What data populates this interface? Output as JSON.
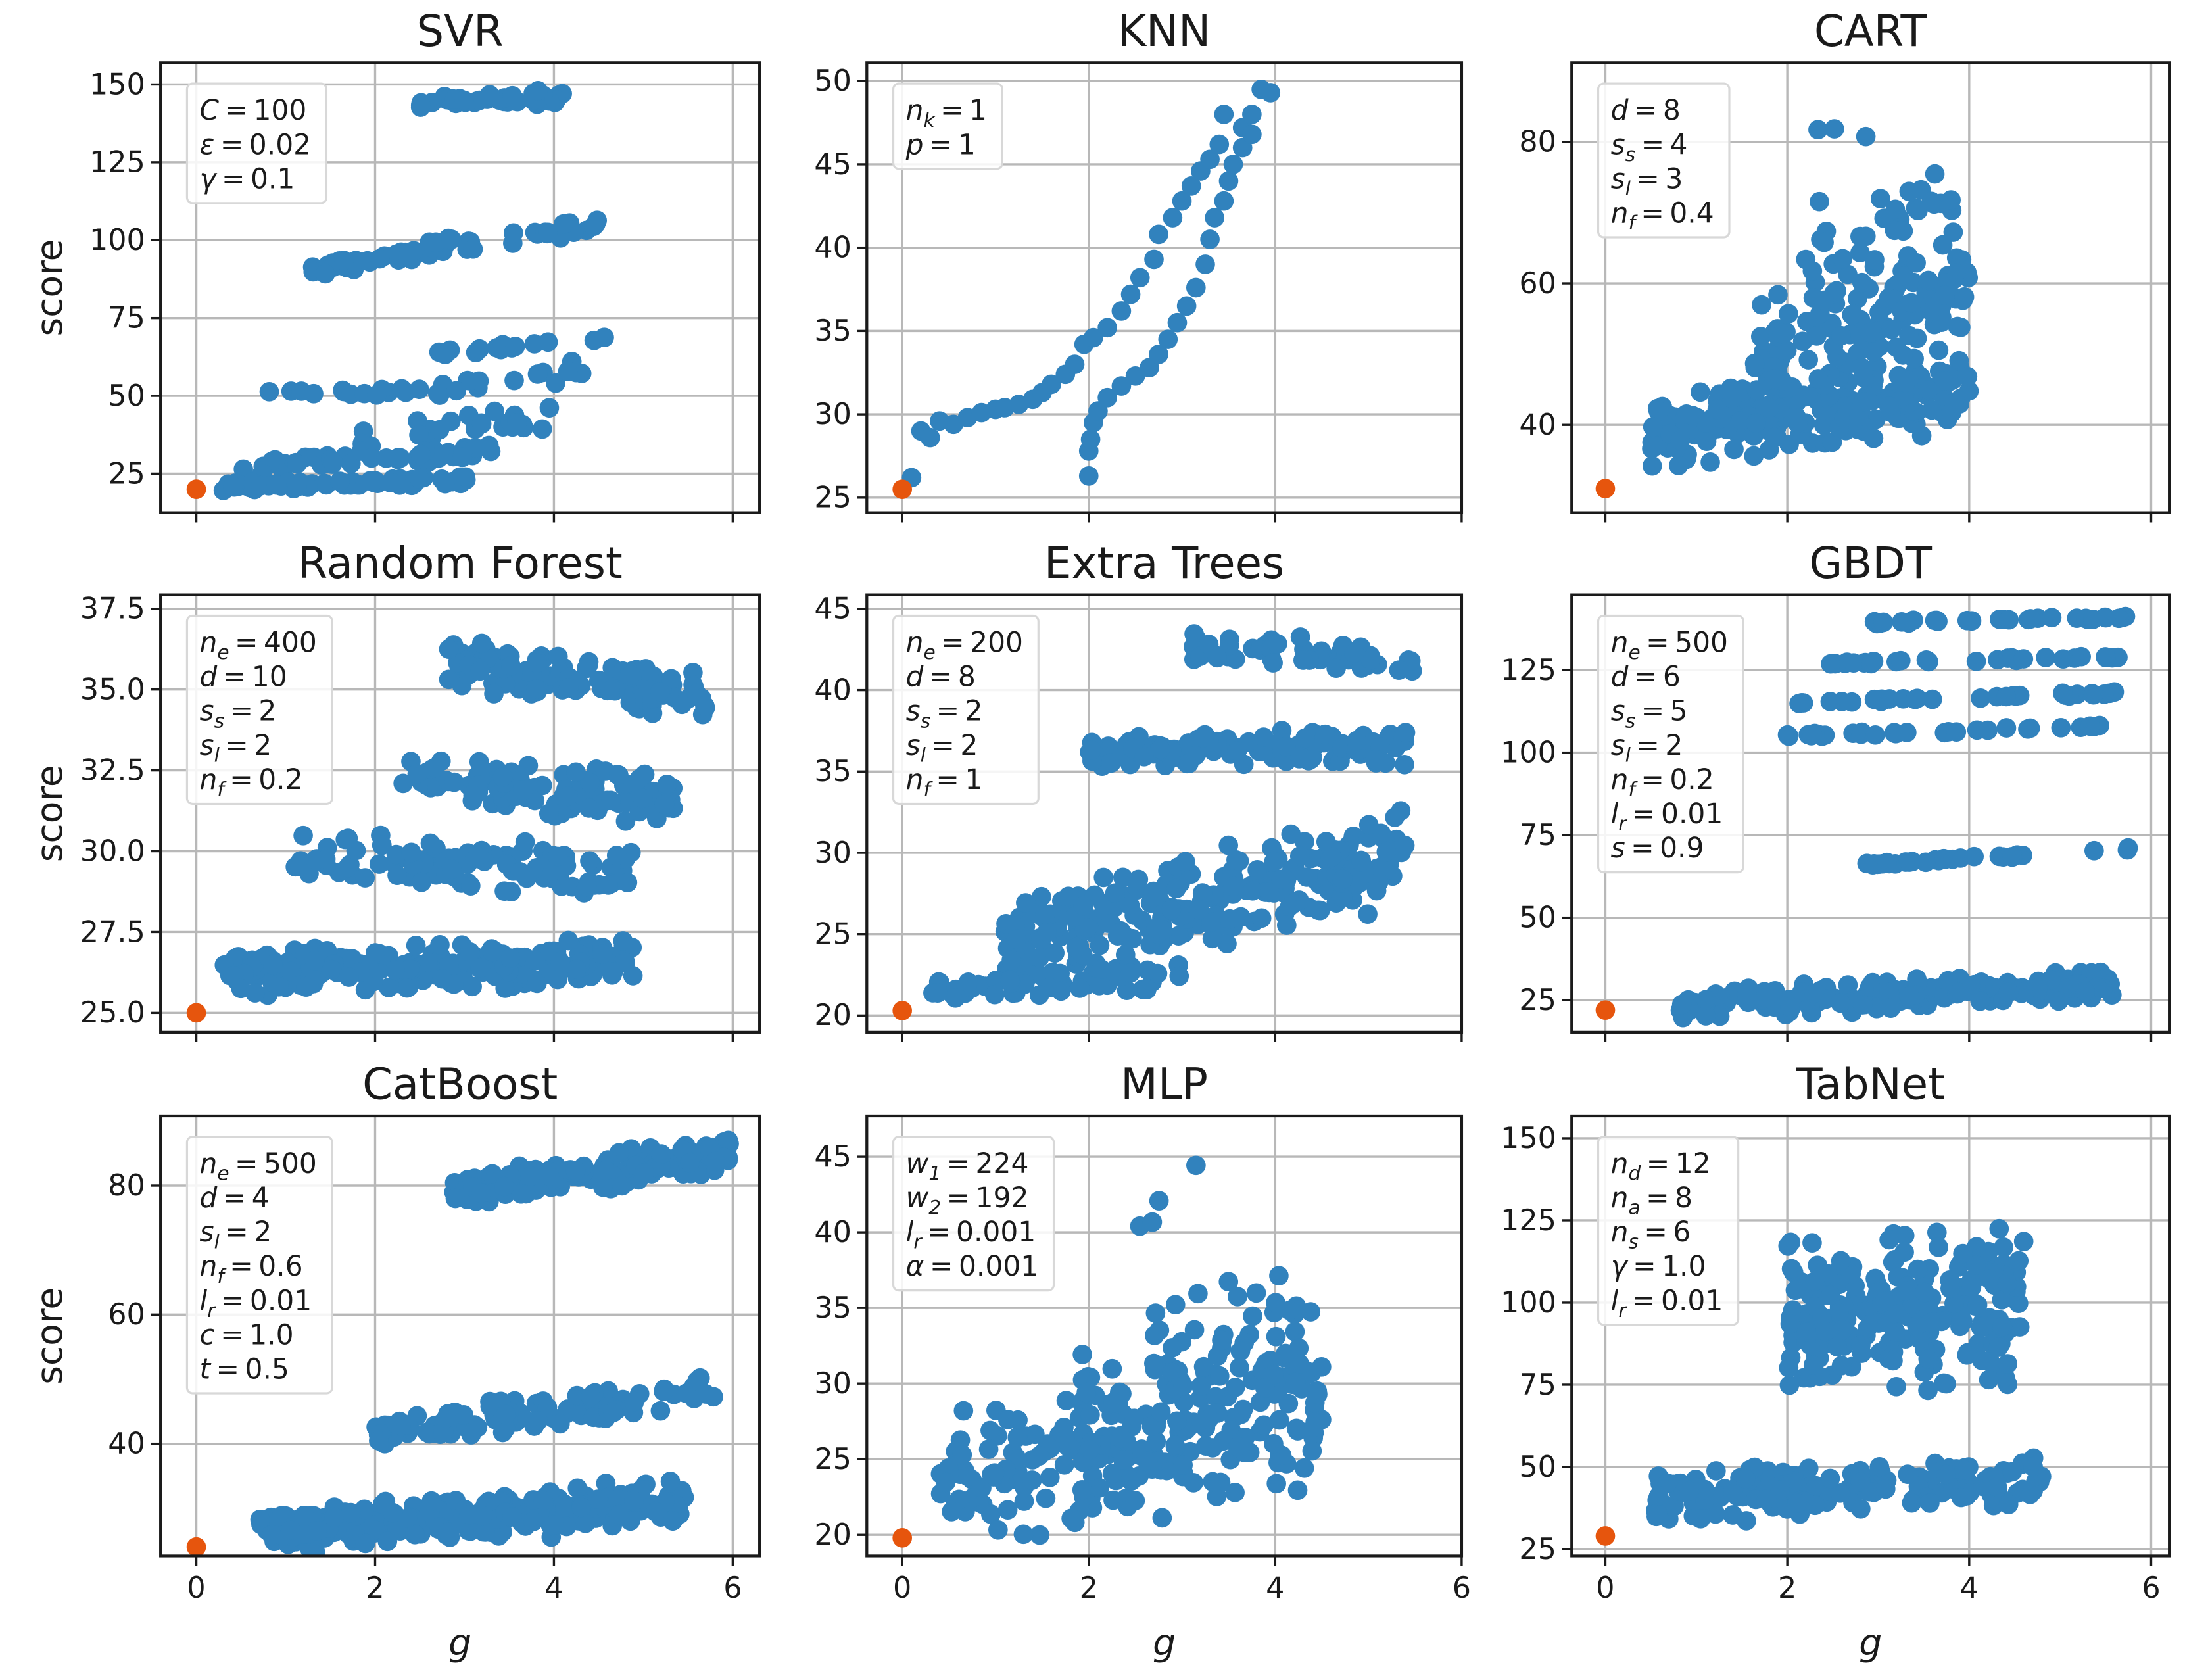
{
  "chart_data": {
    "type": "scatter",
    "layout": "3x3 grid",
    "xlabel": "g",
    "ylabel": "score",
    "colors": {
      "points": "#3182bd",
      "baseline": "#e6550d"
    },
    "panels": [
      {
        "title": "SVR",
        "xlim": [
          -0.4,
          6.3
        ],
        "ylim": [
          12.5,
          157
        ],
        "yticks": [
          25,
          50,
          75,
          100,
          125,
          150
        ],
        "xticks": [
          0,
          2,
          4,
          6
        ],
        "legend": [
          {
            "sym": "C",
            "sub": "",
            "val": "100"
          },
          {
            "sym": "ε",
            "sub": "",
            "val": "0.02"
          },
          {
            "sym": "γ",
            "sub": "",
            "val": "0.1"
          }
        ],
        "baseline": [
          0,
          20
        ],
        "clusters": [
          {
            "x": [
              2.5,
              4.1
            ],
            "y": [
              144,
              146
            ],
            "spread": 3,
            "n": 45
          },
          {
            "x": [
              1.1,
              2.8
            ],
            "y": [
              89,
              98
            ],
            "spread": 2.5,
            "n": 40
          },
          {
            "x": [
              2.6,
              4.5
            ],
            "y": [
              99,
              104
            ],
            "spread": 4,
            "n": 25
          },
          {
            "x": [
              2.6,
              4.6
            ],
            "y": [
              64,
              68
            ],
            "spread": 1.5,
            "n": 15
          },
          {
            "x": [
              0.8,
              2.0
            ],
            "y": [
              52,
              51
            ],
            "spread": 1,
            "n": 8
          },
          {
            "x": [
              2.0,
              4.4
            ],
            "y": [
              50,
              58
            ],
            "spread": 4,
            "n": 22
          },
          {
            "x": [
              1.8,
              4.0
            ],
            "y": [
              36,
              44
            ],
            "spread": 5,
            "n": 25
          },
          {
            "x": [
              0.5,
              3.3
            ],
            "y": [
              27,
              32
            ],
            "spread": 3,
            "n": 50
          },
          {
            "x": [
              0.3,
              3.2
            ],
            "y": [
              21,
              23
            ],
            "spread": 1.5,
            "n": 60
          }
        ]
      },
      {
        "title": "KNN",
        "xlim": [
          -0.38,
          6.0
        ],
        "ylim": [
          24.1,
          51.1
        ],
        "yticks": [
          25,
          30,
          35,
          40,
          45,
          50
        ],
        "xticks": [
          0,
          2,
          4,
          6
        ],
        "legend": [
          {
            "sym": "n",
            "sub": "k",
            "val": "1"
          },
          {
            "sym": "p",
            "sub": "",
            "val": "1"
          }
        ],
        "baseline": [
          0,
          25.5
        ],
        "points": [
          [
            0.1,
            26.2
          ],
          [
            0.2,
            29
          ],
          [
            0.3,
            28.6
          ],
          [
            0.4,
            29.6
          ],
          [
            0.55,
            29.4
          ],
          [
            0.7,
            29.8
          ],
          [
            0.85,
            30.1
          ],
          [
            1.0,
            30.3
          ],
          [
            1.1,
            30.4
          ],
          [
            1.25,
            30.6
          ],
          [
            1.4,
            30.9
          ],
          [
            1.5,
            31.3
          ],
          [
            1.6,
            31.8
          ],
          [
            1.75,
            32.4
          ],
          [
            1.85,
            33
          ],
          [
            1.95,
            34.2
          ],
          [
            2.05,
            34.6
          ],
          [
            2.2,
            35.2
          ],
          [
            2.35,
            36.2
          ],
          [
            2.45,
            37.2
          ],
          [
            2.55,
            38.2
          ],
          [
            2.7,
            39.3
          ],
          [
            2.75,
            40.8
          ],
          [
            2.9,
            41.8
          ],
          [
            3.0,
            42.8
          ],
          [
            3.1,
            43.7
          ],
          [
            3.2,
            44.6
          ],
          [
            3.3,
            45.3
          ],
          [
            3.4,
            46.2
          ],
          [
            3.45,
            48
          ],
          [
            3.65,
            47.2
          ],
          [
            3.75,
            48
          ],
          [
            3.85,
            49.5
          ],
          [
            2.0,
            26.3
          ],
          [
            2.0,
            27.8
          ],
          [
            2.02,
            28.5
          ],
          [
            2.05,
            29.5
          ],
          [
            2.1,
            30.2
          ],
          [
            2.2,
            31
          ],
          [
            2.35,
            31.7
          ],
          [
            2.5,
            32.3
          ],
          [
            2.65,
            32.8
          ],
          [
            2.75,
            33.6
          ],
          [
            2.85,
            34.5
          ],
          [
            2.95,
            35.5
          ],
          [
            3.05,
            36.5
          ],
          [
            3.15,
            37.6
          ],
          [
            3.25,
            39
          ],
          [
            3.3,
            40.5
          ],
          [
            3.35,
            41.8
          ],
          [
            3.45,
            42.8
          ],
          [
            3.5,
            44
          ],
          [
            3.55,
            45
          ],
          [
            3.65,
            46
          ],
          [
            3.75,
            46.8
          ],
          [
            3.95,
            49.3
          ]
        ]
      },
      {
        "title": "CART",
        "xlim": [
          -0.37,
          6.2
        ],
        "ylim": [
          27.6,
          91.2
        ],
        "yticks": [
          40,
          60,
          80
        ],
        "xticks": [
          0,
          2,
          4,
          6
        ],
        "legend": [
          {
            "sym": "d",
            "sub": "",
            "val": "8"
          },
          {
            "sym": "s",
            "sub": "s",
            "val": "4"
          },
          {
            "sym": "s",
            "sub": "l",
            "val": "3"
          },
          {
            "sym": "n",
            "sub": "f",
            "val": "0.4"
          }
        ],
        "baseline": [
          0,
          31
        ],
        "clusters": [
          {
            "x": [
              0.5,
              4.0
            ],
            "y": [
              39,
              45
            ],
            "spread": 6,
            "n": 220
          },
          {
            "x": [
              1.6,
              4.0
            ],
            "y": [
              50,
              60
            ],
            "spread": 9,
            "n": 130
          },
          {
            "x": [
              2.2,
              4.0
            ],
            "y": [
              66,
              72
            ],
            "spread": 6,
            "n": 30
          },
          {
            "x": [
              2.2,
              3.5
            ],
            "y": [
              80,
              86
            ],
            "spread": 3,
            "n": 3
          }
        ]
      },
      {
        "title": "Random Forest",
        "xlim": [
          -0.4,
          6.3
        ],
        "ylim": [
          24.4,
          37.93
        ],
        "yticks": [
          25.0,
          27.5,
          30.0,
          32.5,
          35.0,
          37.5
        ],
        "tickDecimals": 1,
        "xticks": [
          0,
          2,
          4,
          6
        ],
        "legend": [
          {
            "sym": "n",
            "sub": "e",
            "val": "400"
          },
          {
            "sym": "d",
            "sub": "",
            "val": "10"
          },
          {
            "sym": "s",
            "sub": "s",
            "val": "2"
          },
          {
            "sym": "s",
            "sub": "l",
            "val": "2"
          },
          {
            "sym": "n",
            "sub": "f",
            "val": "0.2"
          }
        ],
        "baseline": [
          0,
          25.0
        ],
        "clusters": [
          {
            "x": [
              2.8,
              5.7
            ],
            "y": [
              35.8,
              34.8
            ],
            "spread": 0.8,
            "n": 130
          },
          {
            "x": [
              2.3,
              5.4
            ],
            "y": [
              32.2,
              31.5
            ],
            "spread": 0.9,
            "n": 110
          },
          {
            "x": [
              1.1,
              4.9
            ],
            "y": [
              29.8,
              29.4
            ],
            "spread": 0.9,
            "n": 110
          },
          {
            "x": [
              0.3,
              4.9
            ],
            "y": [
              26.2,
              26.6
            ],
            "spread": 0.8,
            "n": 220
          }
        ]
      },
      {
        "title": "Extra Trees",
        "xlim": [
          -0.38,
          6.0
        ],
        "ylim": [
          18.97,
          45.86
        ],
        "yticks": [
          20,
          25,
          30,
          35,
          40,
          45
        ],
        "xticks": [
          0,
          2,
          4,
          6
        ],
        "legend": [
          {
            "sym": "n",
            "sub": "e",
            "val": "200"
          },
          {
            "sym": "d",
            "sub": "",
            "val": "8"
          },
          {
            "sym": "s",
            "sub": "s",
            "val": "2"
          },
          {
            "sym": "s",
            "sub": "l",
            "val": "2"
          },
          {
            "sym": "n",
            "sub": "f",
            "val": "1"
          }
        ],
        "baseline": [
          0,
          20.3
        ],
        "clusters": [
          {
            "x": [
              3.0,
              5.6
            ],
            "y": [
              42.8,
              41.8
            ],
            "spread": 1.2,
            "n": 45
          },
          {
            "x": [
              2.0,
              5.4
            ],
            "y": [
              36.3,
              36.5
            ],
            "spread": 1.2,
            "n": 110
          },
          {
            "x": [
              1.1,
              5.4
            ],
            "y": [
              24,
              30
            ],
            "spread": 3.5,
            "n": 260
          },
          {
            "x": [
              0.3,
              3.0
            ],
            "y": [
              21.5,
              22.5
            ],
            "spread": 1,
            "n": 50
          }
        ]
      },
      {
        "title": "GBDT",
        "xlim": [
          -0.37,
          6.2
        ],
        "ylim": [
          15.3,
          147.8
        ],
        "yticks": [
          25,
          50,
          75,
          100,
          125
        ],
        "xticks": [
          0,
          2,
          4,
          6
        ],
        "legend": [
          {
            "sym": "n",
            "sub": "e",
            "val": "500"
          },
          {
            "sym": "d",
            "sub": "",
            "val": "6"
          },
          {
            "sym": "s",
            "sub": "s",
            "val": "5"
          },
          {
            "sym": "s",
            "sub": "l",
            "val": "2"
          },
          {
            "sym": "n",
            "sub": "f",
            "val": "0.2"
          },
          {
            "sym": "l",
            "sub": "r",
            "val": "0.01"
          },
          {
            "sym": "s",
            "sub": "",
            "val": "0.9"
          }
        ],
        "baseline": [
          0,
          22
        ],
        "clusters": [
          {
            "x": [
              2.9,
              5.8
            ],
            "y": [
              139.5,
              141
            ],
            "spread": 0.6,
            "n": 30
          },
          {
            "x": [
              2.4,
              5.7
            ],
            "y": [
              127,
              129
            ],
            "spread": 0.6,
            "n": 30
          },
          {
            "x": [
              2.0,
              5.6
            ],
            "y": [
              115,
              118
            ],
            "spread": 0.6,
            "n": 30
          },
          {
            "x": [
              2.0,
              5.5
            ],
            "y": [
              105,
              108
            ],
            "spread": 0.6,
            "n": 30
          },
          {
            "x": [
              2.8,
              5.8
            ],
            "y": [
              66,
              71
            ],
            "spread": 0.6,
            "n": 30
          },
          {
            "x": [
              0.8,
              5.6
            ],
            "y": [
              23,
              30
            ],
            "spread": 5,
            "n": 170
          }
        ]
      },
      {
        "title": "CatBoost",
        "xlim": [
          -0.4,
          6.3
        ],
        "ylim": [
          22.6,
          90.8
        ],
        "yticks": [
          40,
          60,
          80
        ],
        "xticks": [
          0,
          2,
          4,
          6
        ],
        "legend": [
          {
            "sym": "n",
            "sub": "e",
            "val": "500"
          },
          {
            "sym": "d",
            "sub": "",
            "val": "4"
          },
          {
            "sym": "s",
            "sub": "l",
            "val": "2"
          },
          {
            "sym": "n",
            "sub": "f",
            "val": "0.6"
          },
          {
            "sym": "l",
            "sub": "r",
            "val": "0.01"
          },
          {
            "sym": "c",
            "sub": "",
            "val": "1.0"
          },
          {
            "sym": "t",
            "sub": "",
            "val": "0.5"
          }
        ],
        "baseline": [
          0,
          24
        ],
        "clusters": [
          {
            "x": [
              2.8,
              6.0
            ],
            "y": [
              79,
              85
            ],
            "spread": 3,
            "n": 160
          },
          {
            "x": [
              2.0,
              5.8
            ],
            "y": [
              42,
              48
            ],
            "spread": 3,
            "n": 110
          },
          {
            "x": [
              0.7,
              5.5
            ],
            "y": [
              26,
              31
            ],
            "spread": 4,
            "n": 260
          }
        ]
      },
      {
        "title": "MLP",
        "xlim": [
          -0.38,
          6.0
        ],
        "ylim": [
          18.6,
          47.7
        ],
        "yticks": [
          20,
          25,
          30,
          35,
          40,
          45
        ],
        "xticks": [
          0,
          2,
          4,
          6
        ],
        "legend": [
          {
            "sym": "w",
            "sub": "1",
            "val": "224"
          },
          {
            "sym": "w",
            "sub": "2",
            "val": "192"
          },
          {
            "sym": "l",
            "sub": "r",
            "val": "0.001"
          },
          {
            "sym": "α",
            "sub": "",
            "val": "0.001"
          }
        ],
        "baseline": [
          0,
          19.8
        ],
        "clusters": [
          {
            "x": [
              0.4,
              4.5
            ],
            "y": [
              23,
              28
            ],
            "spread": 5,
            "n": 200
          },
          {
            "x": [
              1.9,
              4.4
            ],
            "y": [
              29,
              34
            ],
            "spread": 6,
            "n": 90
          },
          {
            "x": [
              2.5,
              3.5
            ],
            "y": [
              41,
              45
            ],
            "spread": 2,
            "n": 4
          }
        ]
      },
      {
        "title": "TabNet",
        "xlim": [
          -0.37,
          6.2
        ],
        "ylim": [
          22.9,
          156.8
        ],
        "yticks": [
          25,
          50,
          75,
          100,
          125,
          150
        ],
        "xticks": [
          0,
          2,
          4,
          6
        ],
        "legend": [
          {
            "sym": "n",
            "sub": "d",
            "val": "12"
          },
          {
            "sym": "n",
            "sub": "a",
            "val": "8"
          },
          {
            "sym": "n",
            "sub": "s",
            "val": "6"
          },
          {
            "sym": "γ",
            "sub": "",
            "val": "1.0"
          },
          {
            "sym": "l",
            "sub": "r",
            "val": "0.01"
          }
        ],
        "baseline": [
          0,
          29
        ],
        "clusters": [
          {
            "x": [
              0.5,
              4.8
            ],
            "y": [
              40,
              46
            ],
            "spread": 9,
            "n": 170
          },
          {
            "x": [
              2.0,
              4.6
            ],
            "y": [
              95,
              100
            ],
            "spread": 28,
            "n": 220
          }
        ]
      }
    ]
  }
}
